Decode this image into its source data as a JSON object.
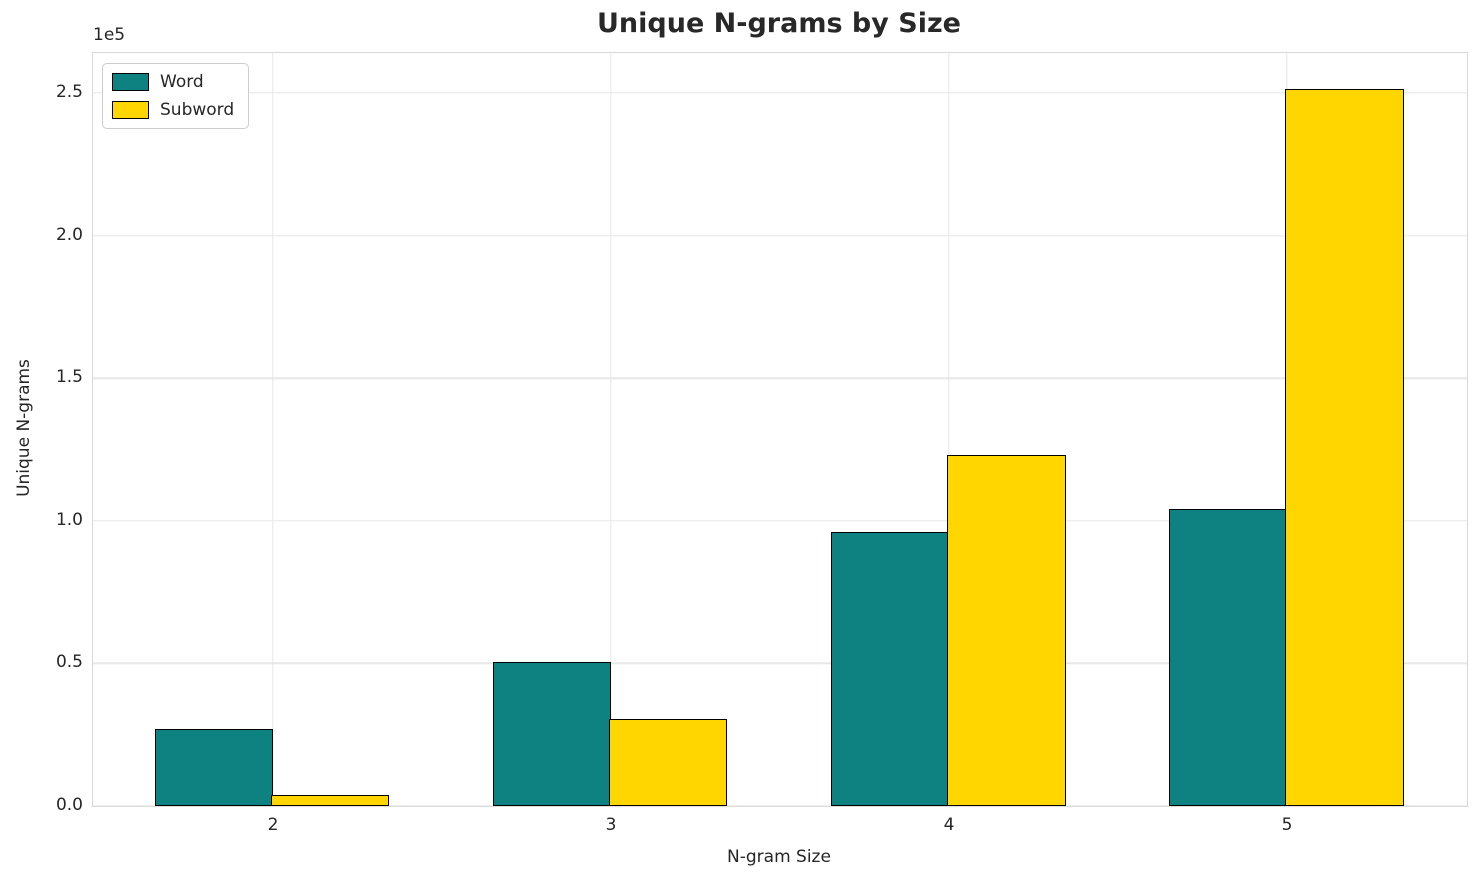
{
  "chart_data": {
    "type": "bar",
    "title": "Unique N-grams by Size",
    "xlabel": "N-gram Size",
    "ylabel": "Unique N-grams",
    "y_offset_text": "1e5",
    "categories": [
      "2",
      "3",
      "4",
      "5"
    ],
    "series": [
      {
        "name": "Word",
        "color": "#0d8280",
        "values": [
          27000,
          50500,
          96000,
          104000
        ]
      },
      {
        "name": "Subword",
        "color": "#ffd600",
        "values": [
          3700,
          30500,
          123000,
          251500
        ]
      }
    ],
    "bar_edge_color": "#000000",
    "ylim": [
      0,
      264000
    ],
    "yticks": [
      0,
      50000,
      100000,
      150000,
      200000,
      250000
    ],
    "ytick_labels": [
      "0.0",
      "0.5",
      "1.0",
      "1.5",
      "2.0",
      "2.5"
    ],
    "grid": true,
    "legend_position": "upper left",
    "background_color": "#ffffff",
    "grid_color": "#e7e7e7",
    "text_color": "#262626"
  }
}
